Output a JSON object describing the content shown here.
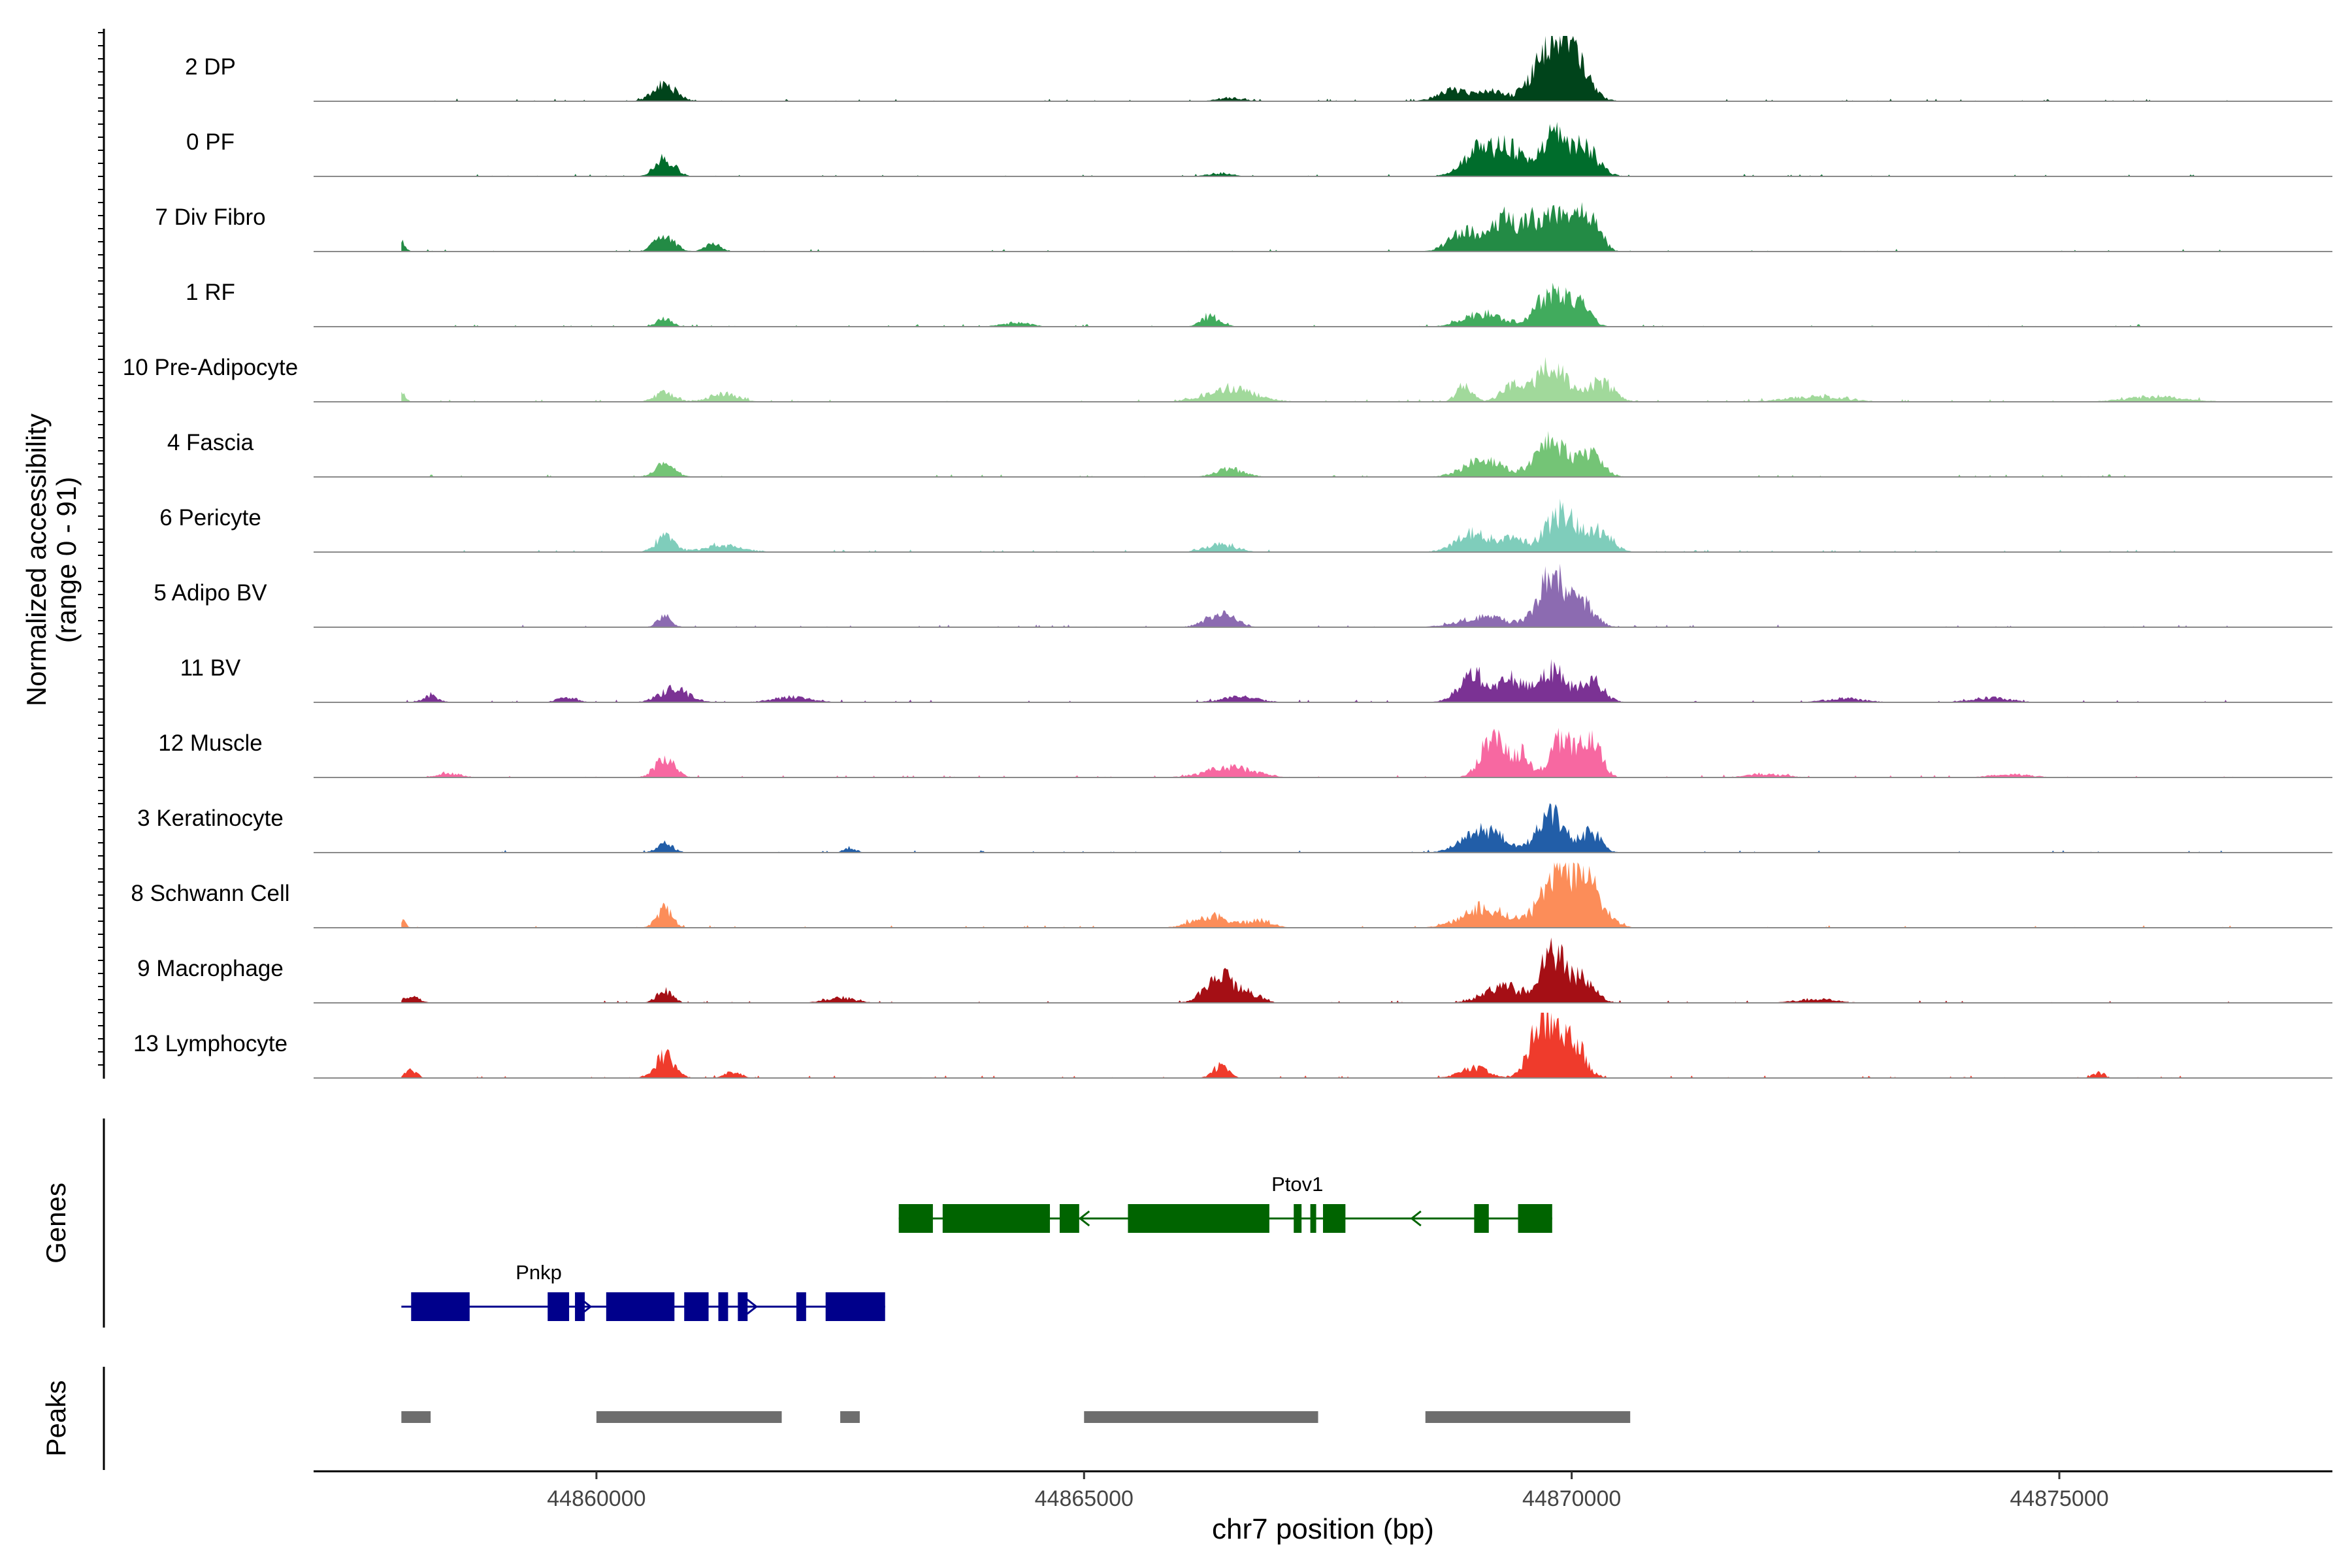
{
  "chart_data": {
    "type": "area",
    "title": "",
    "xlabel": "chr7 position (bp)",
    "ylabel": [
      "Normalized accessibility",
      "(range 0 - 91)"
    ],
    "xlim": [
      44857100,
      44877800
    ],
    "ylim": [
      0,
      91
    ],
    "x_ticks": [
      44860000,
      44865000,
      44870000,
      44875000
    ],
    "x_tick_labels": [
      "44860000",
      "44865000",
      "44870000",
      "44875000"
    ],
    "track_range": [
      44858000,
      44876800
    ],
    "tracks": [
      {
        "label": "2 DP",
        "color": "#00441b",
        "peaks": [
          [
            44860700,
            0.25,
            120
          ],
          [
            44866500,
            0.05,
            150
          ],
          [
            44868800,
            0.18,
            160
          ],
          [
            44869200,
            0.14,
            120
          ],
          [
            44869700,
            0.55,
            150
          ],
          [
            44870000,
            0.6,
            160
          ],
          [
            44869900,
            0.45,
            100
          ]
        ]
      },
      {
        "label": "0 PF",
        "color": "#006d2c",
        "peaks": [
          [
            44860700,
            0.28,
            100
          ],
          [
            44866400,
            0.05,
            120
          ],
          [
            44869100,
            0.45,
            180
          ],
          [
            44869400,
            0.3,
            120
          ],
          [
            44869800,
            0.55,
            130
          ],
          [
            44870100,
            0.45,
            150
          ]
        ]
      },
      {
        "label": "7 Div Fibro",
        "color": "#238b45",
        "peaks": [
          [
            44858000,
            0.15,
            40
          ],
          [
            44860700,
            0.25,
            100
          ],
          [
            44861200,
            0.12,
            80
          ],
          [
            44868900,
            0.3,
            150
          ],
          [
            44869300,
            0.5,
            130
          ],
          [
            44869600,
            0.4,
            100
          ],
          [
            44869900,
            0.7,
            140
          ],
          [
            44870200,
            0.5,
            100
          ]
        ]
      },
      {
        "label": "1 RF",
        "color": "#41ab5d",
        "peaks": [
          [
            44860700,
            0.12,
            80
          ],
          [
            44864300,
            0.06,
            150
          ],
          [
            44866300,
            0.15,
            100
          ],
          [
            44869100,
            0.2,
            200
          ],
          [
            44869800,
            0.55,
            150
          ],
          [
            44870100,
            0.3,
            100
          ]
        ]
      },
      {
        "label": "10 Pre-Adipocyte",
        "color": "#a1d99b",
        "peaks": [
          [
            44858000,
            0.15,
            40
          ],
          [
            44860700,
            0.15,
            100
          ],
          [
            44861300,
            0.12,
            150
          ],
          [
            44866500,
            0.2,
            250
          ],
          [
            44868900,
            0.25,
            80
          ],
          [
            44869400,
            0.25,
            120
          ],
          [
            44869800,
            0.55,
            150
          ],
          [
            44870300,
            0.3,
            130
          ],
          [
            44872500,
            0.08,
            300
          ],
          [
            44876000,
            0.08,
            300
          ]
        ]
      },
      {
        "label": "4 Fascia",
        "color": "#74c476",
        "peaks": [
          [
            44860700,
            0.2,
            100
          ],
          [
            44866500,
            0.12,
            150
          ],
          [
            44869100,
            0.25,
            200
          ],
          [
            44869800,
            0.55,
            160
          ],
          [
            44870200,
            0.35,
            120
          ]
        ]
      },
      {
        "label": "6 Pericyte",
        "color": "#7fcdbb",
        "peaks": [
          [
            44860700,
            0.22,
            100
          ],
          [
            44861300,
            0.1,
            200
          ],
          [
            44866400,
            0.12,
            150
          ],
          [
            44869000,
            0.28,
            180
          ],
          [
            44869400,
            0.22,
            120
          ],
          [
            44869900,
            0.6,
            160
          ],
          [
            44870300,
            0.3,
            120
          ]
        ]
      },
      {
        "label": "5 Adipo BV",
        "color": "#8c6bb1",
        "peaks": [
          [
            44860700,
            0.18,
            70
          ],
          [
            44866400,
            0.2,
            150
          ],
          [
            44869100,
            0.15,
            250
          ],
          [
            44869800,
            0.75,
            140
          ],
          [
            44870100,
            0.35,
            130
          ]
        ]
      },
      {
        "label": "11 BV",
        "color": "#7b3294",
        "peaks": [
          [
            44858300,
            0.1,
            80
          ],
          [
            44859700,
            0.08,
            100
          ],
          [
            44860800,
            0.2,
            150
          ],
          [
            44862000,
            0.08,
            200
          ],
          [
            44866600,
            0.08,
            200
          ],
          [
            44869000,
            0.4,
            150
          ],
          [
            44869400,
            0.35,
            120
          ],
          [
            44869800,
            0.5,
            130
          ],
          [
            44870200,
            0.35,
            120
          ],
          [
            44872800,
            0.06,
            200
          ],
          [
            44874300,
            0.07,
            200
          ]
        ]
      },
      {
        "label": "12 Muscle",
        "color": "#f768a1",
        "peaks": [
          [
            44858500,
            0.06,
            120
          ],
          [
            44860700,
            0.3,
            100
          ],
          [
            44866500,
            0.15,
            250
          ],
          [
            44869200,
            0.7,
            120
          ],
          [
            44869500,
            0.35,
            80
          ],
          [
            44869900,
            0.6,
            120
          ],
          [
            44870200,
            0.6,
            100
          ],
          [
            44872000,
            0.05,
            200
          ],
          [
            44874500,
            0.05,
            200
          ]
        ]
      },
      {
        "label": "3 Keratinocyte",
        "color": "#225ea8",
        "peaks": [
          [
            44860700,
            0.15,
            80
          ],
          [
            44862600,
            0.08,
            60
          ],
          [
            44869100,
            0.35,
            200
          ],
          [
            44869800,
            0.55,
            140
          ],
          [
            44870200,
            0.3,
            100
          ]
        ]
      },
      {
        "label": "8 Schwann Cell",
        "color": "#fc8d59",
        "peaks": [
          [
            44858000,
            0.12,
            40
          ],
          [
            44860700,
            0.3,
            80
          ],
          [
            44866300,
            0.18,
            180
          ],
          [
            44866800,
            0.12,
            120
          ],
          [
            44869100,
            0.3,
            220
          ],
          [
            44869900,
            0.8,
            200
          ],
          [
            44870200,
            0.4,
            150
          ]
        ]
      },
      {
        "label": "9 Macrophage",
        "color": "#a50f15",
        "peaks": [
          [
            44858100,
            0.1,
            80
          ],
          [
            44860700,
            0.18,
            80
          ],
          [
            44862500,
            0.08,
            150
          ],
          [
            44866400,
            0.4,
            150
          ],
          [
            44866700,
            0.12,
            120
          ],
          [
            44869300,
            0.25,
            200
          ],
          [
            44869800,
            0.75,
            120
          ],
          [
            44870100,
            0.35,
            130
          ],
          [
            44872500,
            0.06,
            200
          ]
        ]
      },
      {
        "label": "13 Lymphocyte",
        "color": "#ef3b2c",
        "peaks": [
          [
            44858100,
            0.12,
            60
          ],
          [
            44860700,
            0.35,
            100
          ],
          [
            44861400,
            0.1,
            80
          ],
          [
            44866400,
            0.18,
            80
          ],
          [
            44869000,
            0.15,
            150
          ],
          [
            44869700,
            0.95,
            120
          ],
          [
            44870000,
            0.6,
            120
          ],
          [
            44875400,
            0.08,
            60
          ]
        ]
      }
    ],
    "genes": [
      {
        "name": "Ptov1",
        "strand": "-",
        "color": "#006400",
        "row": 1,
        "start": 44863100,
        "end": 44869800,
        "exons": [
          [
            44863100,
            44863450
          ],
          [
            44863550,
            44864650
          ],
          [
            44864750,
            44864950
          ],
          [
            44865450,
            44866900
          ],
          [
            44867150,
            44867230
          ],
          [
            44867320,
            44867380
          ],
          [
            44867450,
            44867680
          ],
          [
            44869000,
            44869150
          ],
          [
            44869450,
            44869800
          ]
        ]
      },
      {
        "name": "Pnkp",
        "strand": "+",
        "color": "#00008b",
        "row": 2,
        "start": 44858000,
        "end": 44862960,
        "exons": [
          [
            44858100,
            44858700
          ],
          [
            44859500,
            44859720
          ],
          [
            44859780,
            44859880
          ],
          [
            44860100,
            44860800
          ],
          [
            44860900,
            44861150
          ],
          [
            44861250,
            44861350
          ],
          [
            44861450,
            44861550
          ],
          [
            44862050,
            44862150
          ],
          [
            44862350,
            44862960
          ]
        ]
      }
    ],
    "peak_regions": [
      [
        44858000,
        44858300
      ],
      [
        44860000,
        44861900
      ],
      [
        44862500,
        44862700
      ],
      [
        44865000,
        44867400
      ],
      [
        44868500,
        44870600
      ]
    ],
    "panels": {
      "genes_label": "Genes",
      "peaks_label": "Peaks"
    }
  }
}
